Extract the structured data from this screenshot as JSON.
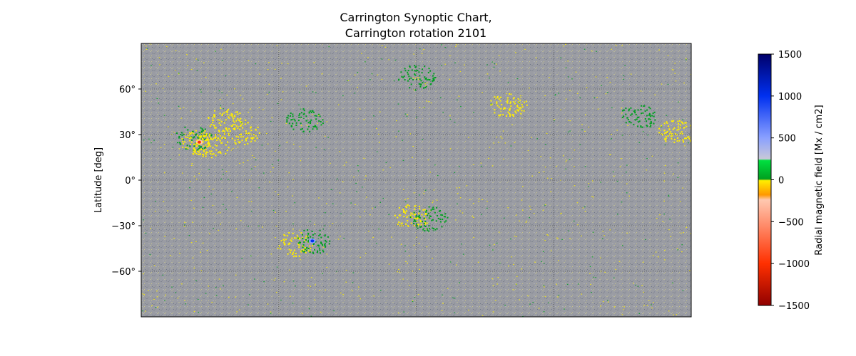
{
  "chart_data": {
    "type": "heatmap",
    "title_line1": "Carrington Synoptic Chart,",
    "title_line2": "Carrington rotation 2101",
    "ylabel": "Latitude [deg]",
    "xlabel": "",
    "yticks": [
      {
        "value": 60,
        "label": "60°"
      },
      {
        "value": 30,
        "label": "30°"
      },
      {
        "value": 0,
        "label": "0°"
      },
      {
        "value": -30,
        "label": "−30°"
      },
      {
        "value": -60,
        "label": "−60°"
      }
    ],
    "ylim": [
      -90,
      90
    ],
    "xlim": [
      0,
      360
    ],
    "grid": true,
    "grid_longitudes": [
      90,
      180,
      270
    ],
    "background_color": "#9a9ca3",
    "colorbar": {
      "label": "Radial magnetic field [Mx / cm2]",
      "range": [
        -1500,
        1500
      ],
      "ticks": [
        {
          "value": 1500,
          "label": "1500"
        },
        {
          "value": 1000,
          "label": "1000"
        },
        {
          "value": 500,
          "label": "500"
        },
        {
          "value": 0,
          "label": "0"
        },
        {
          "value": -500,
          "label": "−500"
        },
        {
          "value": -1000,
          "label": "−1000"
        },
        {
          "value": -1500,
          "label": "−1500"
        }
      ],
      "stops": [
        {
          "value": 1500,
          "color": "#00006a"
        },
        {
          "value": 1000,
          "color": "#0030f0"
        },
        {
          "value": 500,
          "color": "#8aa0ff"
        },
        {
          "value": 250,
          "color": "#c8c8d8"
        },
        {
          "value": 230,
          "color": "#00e040"
        },
        {
          "value": 10,
          "color": "#00a020"
        },
        {
          "value": -10,
          "color": "#ffee00"
        },
        {
          "value": -180,
          "color": "#ff9800"
        },
        {
          "value": -240,
          "color": "#ffc8b0"
        },
        {
          "value": -1000,
          "color": "#ff3000"
        },
        {
          "value": -1500,
          "color": "#900000"
        }
      ]
    },
    "regions": [
      {
        "lon": 34,
        "lat": 28,
        "polarity": "positive",
        "strength": 300
      },
      {
        "lon": 38,
        "lat": 25,
        "polarity": "negative",
        "strength": 1500
      },
      {
        "lon": 46,
        "lat": 23,
        "polarity": "negative",
        "strength": 300
      },
      {
        "lon": 55,
        "lat": 40,
        "polarity": "negative",
        "strength": 250
      },
      {
        "lon": 65,
        "lat": 32,
        "polarity": "negative",
        "strength": 200
      },
      {
        "lon": 100,
        "lat": -42,
        "polarity": "negative",
        "strength": 300
      },
      {
        "lon": 112,
        "lat": -40,
        "polarity": "positive",
        "strength": 1200
      },
      {
        "lon": 176,
        "lat": -24,
        "polarity": "negative",
        "strength": 300
      },
      {
        "lon": 188,
        "lat": -25,
        "polarity": "positive",
        "strength": 300
      },
      {
        "lon": 107,
        "lat": 40,
        "polarity": "positive",
        "strength": 200
      },
      {
        "lon": 180,
        "lat": 68,
        "polarity": "positive",
        "strength": 200
      },
      {
        "lon": 240,
        "lat": 50,
        "polarity": "negative",
        "strength": 250
      },
      {
        "lon": 325,
        "lat": 42,
        "polarity": "positive",
        "strength": 200
      },
      {
        "lon": 350,
        "lat": 32,
        "polarity": "negative",
        "strength": 250
      }
    ]
  }
}
